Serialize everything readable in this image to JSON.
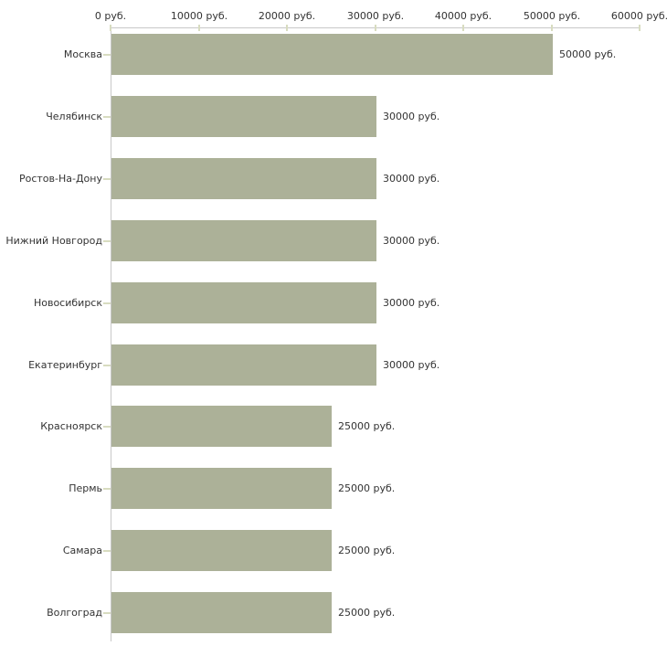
{
  "page": {
    "background": "#ffffff"
  },
  "chart_data": {
    "type": "bar",
    "orientation": "horizontal",
    "title": "",
    "xlabel": "",
    "ylabel": "",
    "unit": "руб.",
    "categories": [
      "Москва",
      "Челябинск",
      "Ростов-На-Дону",
      "Нижний Новгород",
      "Новосибирск",
      "Екатеринбург",
      "Красноярск",
      "Пермь",
      "Самара",
      "Волгоград"
    ],
    "values": [
      50000,
      30000,
      30000,
      30000,
      30000,
      30000,
      25000,
      25000,
      25000,
      25000
    ],
    "bar_labels": [
      "50000 руб.",
      "30000 руб.",
      "30000 руб.",
      "30000 руб.",
      "30000 руб.",
      "30000 руб.",
      "25000 руб.",
      "25000 руб.",
      "25000 руб.",
      "25000 руб."
    ],
    "axis": {
      "position": "top",
      "min": 0,
      "max": 60000,
      "step": 10000,
      "tick_labels": [
        "0 руб.",
        "10000 руб.",
        "20000 руб.",
        "30000 руб.",
        "40000 руб.",
        "50000 руб.",
        "60000 руб."
      ]
    },
    "grid": false,
    "legend": false,
    "colors": {
      "bar": "#acb198",
      "axis_line": "#c8c8c8",
      "tick_mark": "#d8dcc0",
      "label_text": "#333333",
      "background": "#ffffff"
    }
  }
}
